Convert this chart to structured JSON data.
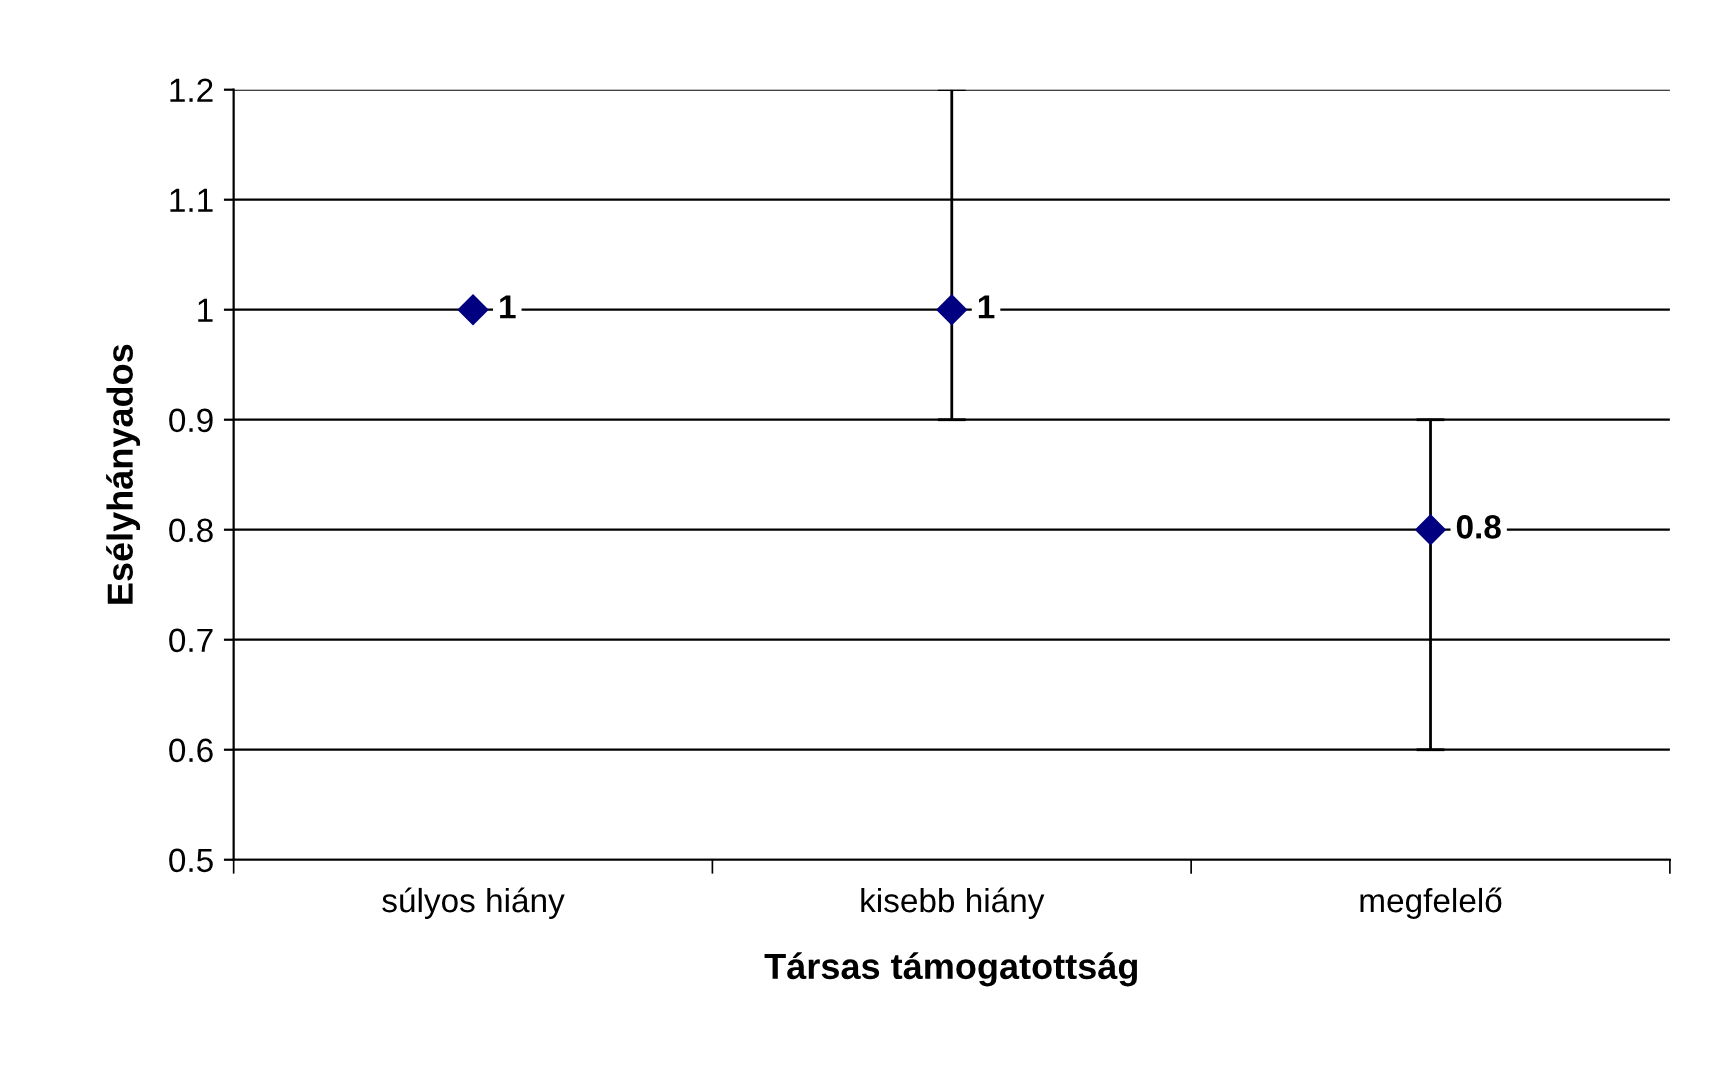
{
  "chart_data": {
    "type": "scatter",
    "xlabel": "Társas támogatottság",
    "ylabel": "Esélyhányados",
    "categories": [
      "súlyos hiány",
      "kisebb hiány",
      "megfelelő"
    ],
    "series": [
      {
        "color": "#000080",
        "values": [
          1,
          1,
          0.8
        ],
        "errors": [
          null,
          [
            0.9,
            1.2
          ],
          [
            0.6,
            0.9
          ]
        ]
      }
    ],
    "ylim": [
      0.5,
      1.2
    ],
    "yticks": [
      0.5,
      0.6,
      0.7,
      0.8,
      0.9,
      1,
      1.1,
      1.2
    ],
    "grid": "y",
    "marker": "diamond",
    "data_labels": true
  }
}
